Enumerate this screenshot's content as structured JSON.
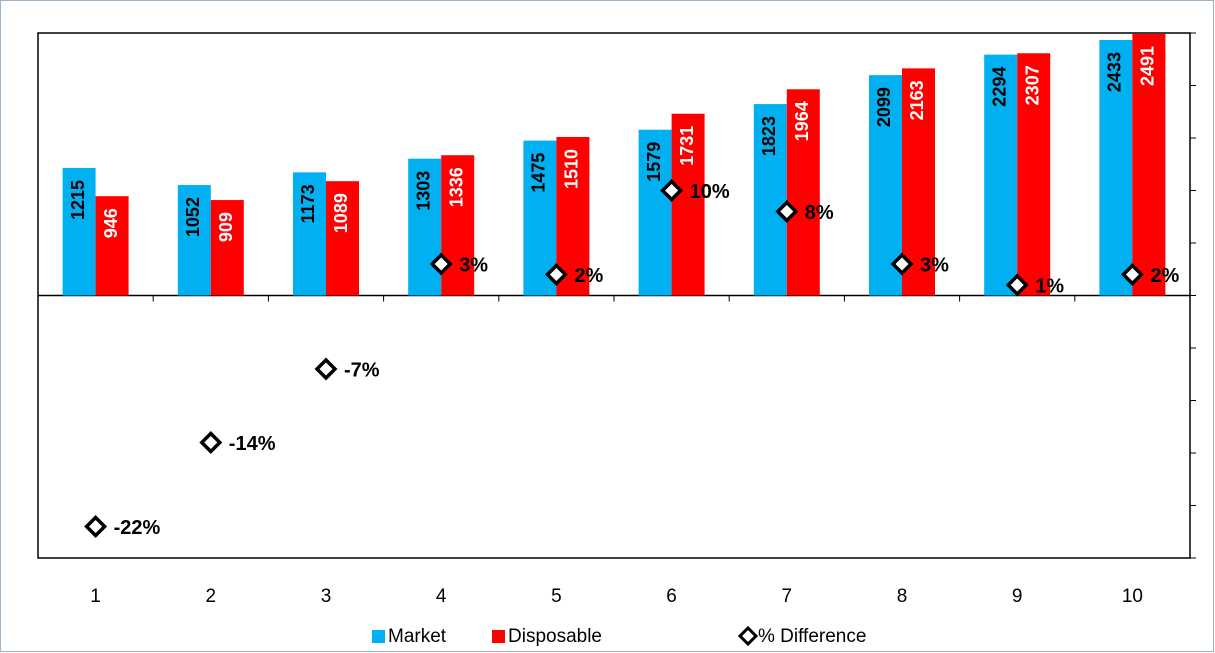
{
  "chart_data": {
    "type": "bar",
    "categories": [
      "1",
      "2",
      "3",
      "4",
      "5",
      "6",
      "7",
      "8",
      "9",
      "10"
    ],
    "series": [
      {
        "name": "Market",
        "color": "#00b0f0",
        "values": [
          1215,
          1052,
          1173,
          1303,
          1475,
          1579,
          1823,
          2099,
          2294,
          2433
        ]
      },
      {
        "name": "Disposable",
        "color": "#ff0000",
        "values": [
          946,
          909,
          1089,
          1336,
          1510,
          1731,
          1964,
          2163,
          2307,
          2491
        ]
      },
      {
        "name": "% Difference",
        "type": "scatter",
        "axis": "y2",
        "color": "#000000",
        "values": [
          -22,
          -14,
          -7,
          3,
          2,
          10,
          8,
          3,
          1,
          2
        ],
        "value_labels": [
          "-22%",
          "-14%",
          "-7%",
          "3%",
          "2%",
          "10%",
          "8%",
          "3%",
          "1%",
          "2%"
        ]
      }
    ],
    "ylim": [
      -2500,
      2500
    ],
    "y2lim": [
      -25,
      25
    ],
    "y2ticks": [
      -25,
      -20,
      -15,
      -10,
      -5,
      0,
      5,
      10,
      15,
      20,
      25
    ]
  }
}
